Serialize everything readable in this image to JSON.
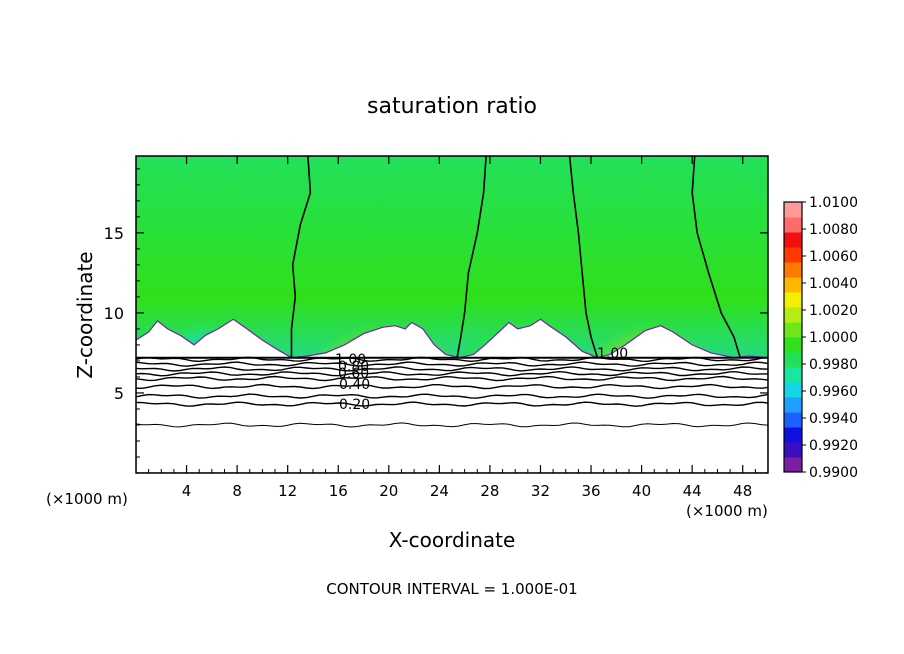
{
  "chart_data": {
    "type": "heatmap",
    "title": "saturation ratio",
    "xlabel": "X-coordinate",
    "ylabel": "Z-coordinate",
    "x_unit_left": "(×1000 m)",
    "x_unit_right": "(×1000 m)",
    "footer": "CONTOUR INTERVAL = 1.000E-01",
    "xlim": [
      0,
      50
    ],
    "ylim": [
      0,
      19.8
    ],
    "x_ticks": [
      4,
      8,
      12,
      16,
      20,
      24,
      28,
      32,
      36,
      40,
      44,
      48
    ],
    "x_tick_labels": [
      "4",
      "8",
      "12",
      "16",
      "20",
      "24",
      "28",
      "32",
      "36",
      "40",
      "44",
      "48"
    ],
    "y_ticks": [
      5,
      10,
      15
    ],
    "y_tick_labels": [
      "5",
      "10",
      "15"
    ],
    "colorbar": {
      "range": [
        0.99,
        1.01
      ],
      "tick_labels": [
        "1.0100",
        "1.0080",
        "1.0060",
        "1.0040",
        "1.0020",
        "1.0000",
        "0.9980",
        "0.9960",
        "0.9940",
        "0.9920",
        "0.9900"
      ],
      "colors": [
        "#7a1fa2",
        "#3a0fbf",
        "#1010e0",
        "#1d5fff",
        "#1fa0ff",
        "#14d6e6",
        "#19e6a2",
        "#22e05a",
        "#2fe01a",
        "#6ee61a",
        "#b4ec14",
        "#f0f000",
        "#ffb800",
        "#ff7a00",
        "#ff3a00",
        "#f01010",
        "#ff6b6b",
        "#ff9a9a"
      ]
    },
    "contour_labels": [
      "1.00",
      "0.80",
      "0.60",
      "0.40",
      "0.20",
      "1.00"
    ],
    "contour_levels_below_cloud": [
      0.2,
      0.4,
      0.6,
      0.8,
      1.0
    ],
    "terrain_height_profile": [
      [
        0,
        8.3
      ],
      [
        1,
        8.8
      ],
      [
        1.7,
        9.5
      ],
      [
        2.5,
        9.0
      ],
      [
        3.5,
        8.6
      ],
      [
        4.6,
        8.0
      ],
      [
        5.5,
        8.6
      ],
      [
        6.5,
        9.0
      ],
      [
        7.7,
        9.6
      ],
      [
        8.6,
        9.1
      ],
      [
        10,
        8.3
      ],
      [
        11.2,
        7.7
      ],
      [
        12.3,
        7.2
      ],
      [
        13.5,
        7.3
      ],
      [
        15,
        7.5
      ],
      [
        16.5,
        8.0
      ],
      [
        18,
        8.7
      ],
      [
        19.5,
        9.1
      ],
      [
        20.5,
        9.2
      ],
      [
        21.3,
        9.0
      ],
      [
        21.8,
        9.4
      ],
      [
        22.7,
        9.0
      ],
      [
        23.6,
        8.0
      ],
      [
        24.5,
        7.4
      ],
      [
        25.6,
        7.2
      ],
      [
        26.7,
        7.4
      ],
      [
        27.6,
        8.0
      ],
      [
        28.7,
        8.8
      ],
      [
        29.5,
        9.4
      ],
      [
        30.2,
        9.0
      ],
      [
        31.2,
        9.2
      ],
      [
        32,
        9.6
      ],
      [
        32.7,
        9.2
      ],
      [
        34,
        8.5
      ],
      [
        35.3,
        7.6
      ],
      [
        36.5,
        7.2
      ],
      [
        37.5,
        7.4
      ],
      [
        38.7,
        8.0
      ],
      [
        40.3,
        8.9
      ],
      [
        41.5,
        9.2
      ],
      [
        42.5,
        8.8
      ],
      [
        44,
        8.0
      ],
      [
        45.5,
        7.5
      ],
      [
        47.3,
        7.2
      ],
      [
        48.5,
        7.3
      ],
      [
        50,
        7.2
      ]
    ],
    "bottom_boundary_height": 7.2
  }
}
